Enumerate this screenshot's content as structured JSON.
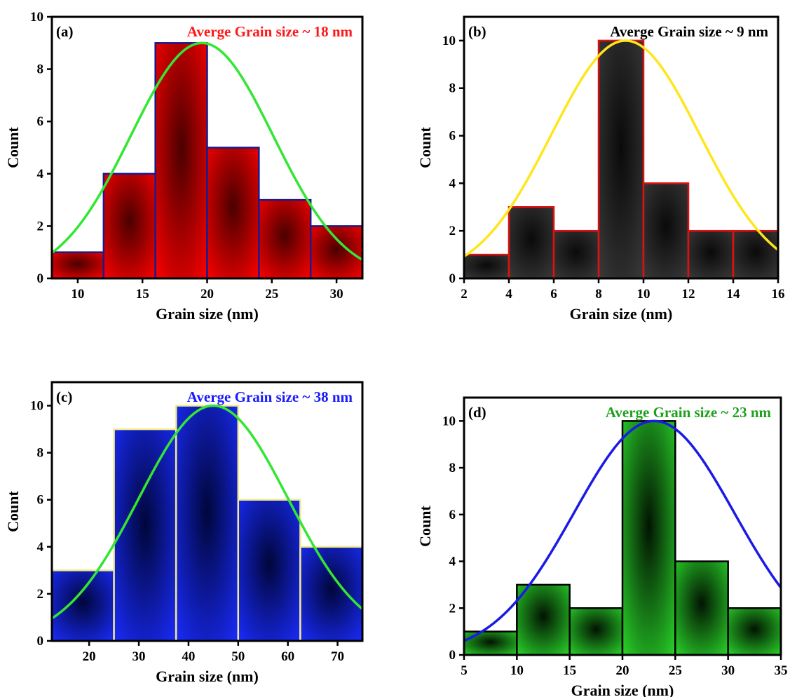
{
  "chart_data": [
    {
      "type": "bar",
      "panel_label": "(a)",
      "annotation": "Averge Grain size ~ 18 nm",
      "annotation_color": "#ff1a1a",
      "xlabel": "Grain size (nm)",
      "ylabel": "Count",
      "xlim": [
        8,
        32
      ],
      "ylim": [
        0,
        10
      ],
      "xticks": [
        10,
        15,
        20,
        25,
        30
      ],
      "yticks": [
        0,
        2,
        4,
        6,
        8,
        10
      ],
      "bins": [
        {
          "x0": 8,
          "x1": 12,
          "count": 1
        },
        {
          "x0": 12,
          "x1": 16,
          "count": 4
        },
        {
          "x0": 16,
          "x1": 20,
          "count": 9
        },
        {
          "x0": 20,
          "x1": 24,
          "count": 5
        },
        {
          "x0": 24,
          "x1": 28,
          "count": 3
        },
        {
          "x0": 28,
          "x1": 32,
          "count": 2
        }
      ],
      "bar_fill": "#ff0000",
      "bar_dark": "#4a0000",
      "bar_edge": "#1a1a8c",
      "fit": {
        "type": "gaussian",
        "peak": 9.0,
        "center": 19.6,
        "sigma": 5.5,
        "color": "#33e633"
      }
    },
    {
      "type": "bar",
      "panel_label": "(b)",
      "annotation": "Averge Grain size ~ 9 nm",
      "annotation_color": "#000000",
      "xlabel": "Grain size (nm)",
      "ylabel": "Count",
      "xlim": [
        2,
        16
      ],
      "ylim": [
        0,
        11
      ],
      "xticks": [
        2,
        4,
        6,
        8,
        10,
        12,
        14,
        16
      ],
      "yticks": [
        0,
        2,
        4,
        6,
        8,
        10
      ],
      "bins": [
        {
          "x0": 2,
          "x1": 4,
          "count": 1
        },
        {
          "x0": 4,
          "x1": 6,
          "count": 3
        },
        {
          "x0": 6,
          "x1": 8,
          "count": 2
        },
        {
          "x0": 8,
          "x1": 10,
          "count": 10
        },
        {
          "x0": 10,
          "x1": 12,
          "count": 4
        },
        {
          "x0": 12,
          "x1": 14,
          "count": 2
        },
        {
          "x0": 14,
          "x1": 16,
          "count": 2
        }
      ],
      "bar_fill": "#3a3a3a",
      "bar_dark": "#0a0a0a",
      "bar_edge": "#e01010",
      "fit": {
        "type": "gaussian",
        "peak": 10.0,
        "center": 9.2,
        "sigma": 3.3,
        "color": "#ffe61a"
      }
    },
    {
      "type": "bar",
      "panel_label": "(c)",
      "annotation": "Averge Grain size ~ 38 nm",
      "annotation_color": "#1a1aff",
      "xlabel": "Grain size (nm)",
      "ylabel": "Count",
      "xlim": [
        12.5,
        75
      ],
      "ylim": [
        0,
        11
      ],
      "xticks": [
        20,
        30,
        40,
        50,
        60,
        70
      ],
      "yticks": [
        0,
        2,
        4,
        6,
        8,
        10
      ],
      "bins": [
        {
          "x0": 12.5,
          "x1": 25,
          "count": 3
        },
        {
          "x0": 25,
          "x1": 37.5,
          "count": 9
        },
        {
          "x0": 37.5,
          "x1": 50,
          "count": 10
        },
        {
          "x0": 50,
          "x1": 62.5,
          "count": 6
        },
        {
          "x0": 62.5,
          "x1": 75,
          "count": 4
        }
      ],
      "bar_fill": "#1a2cff",
      "bar_dark": "#00063a",
      "bar_edge": "#f2ea8c",
      "fit": {
        "type": "gaussian",
        "peak": 10.0,
        "center": 45.0,
        "sigma": 15.0,
        "color": "#33e633"
      }
    },
    {
      "type": "bar",
      "panel_label": "(d)",
      "annotation": "Averge Grain size ~ 23 nm",
      "annotation_color": "#1fa01f",
      "xlabel": "Grain size (nm)",
      "ylabel": "Count",
      "xlim": [
        5,
        35
      ],
      "ylim": [
        0,
        11
      ],
      "xticks": [
        5,
        10,
        15,
        20,
        25,
        30,
        35
      ],
      "yticks": [
        0,
        2,
        4,
        6,
        8,
        10
      ],
      "bins": [
        {
          "x0": 5,
          "x1": 10,
          "count": 1
        },
        {
          "x0": 10,
          "x1": 15,
          "count": 3
        },
        {
          "x0": 15,
          "x1": 20,
          "count": 2
        },
        {
          "x0": 20,
          "x1": 25,
          "count": 10
        },
        {
          "x0": 25,
          "x1": 30,
          "count": 4
        },
        {
          "x0": 30,
          "x1": 35,
          "count": 2
        }
      ],
      "bar_fill": "#2ad62a",
      "bar_dark": "#021402",
      "bar_edge": "#000000",
      "fit": {
        "type": "gaussian",
        "peak": 10.0,
        "center": 23.0,
        "sigma": 7.6,
        "color": "#1a1ae6"
      }
    }
  ]
}
